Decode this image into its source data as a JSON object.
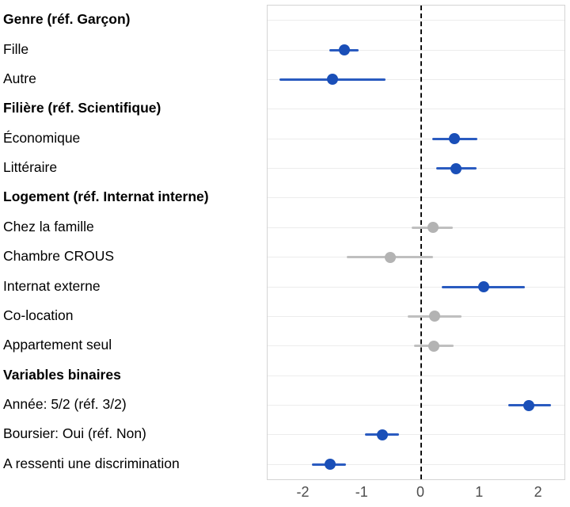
{
  "chart_data": {
    "type": "scatter",
    "subtype": "forest-coefficient-plot",
    "title": "",
    "xlabel": "",
    "ylabel": "",
    "x_ticks": [
      -2,
      -1,
      0,
      1,
      2
    ],
    "x_range": [
      -2.6,
      2.45
    ],
    "zero_reference": 0,
    "grid": "horizontal-only",
    "legend": "none",
    "colors": {
      "significant_point": "#1a4fb8",
      "significant_line": "#2a5bc0",
      "nonsignificant_point": "#b3b3b3",
      "nonsignificant_line": "#bfbfbf",
      "gridline": "#ececec",
      "panel_border": "#d4d4d4",
      "zero_line": "#111111",
      "axis_text": "#4d4d4d",
      "label_text": "#000000"
    },
    "rows": [
      {
        "kind": "header",
        "label": "Genre (réf. Garçon)"
      },
      {
        "kind": "item",
        "label": "Fille",
        "estimate": -1.3,
        "ci_low": -1.55,
        "ci_high": -1.05,
        "significant": true
      },
      {
        "kind": "item",
        "label": "Autre",
        "estimate": -1.5,
        "ci_low": -2.4,
        "ci_high": -0.6,
        "significant": true
      },
      {
        "kind": "header",
        "label": "Filière (réf. Scientifique)"
      },
      {
        "kind": "item",
        "label": "Économique",
        "estimate": 0.58,
        "ci_low": 0.2,
        "ci_high": 0.97,
        "significant": true
      },
      {
        "kind": "item",
        "label": "Littéraire",
        "estimate": 0.61,
        "ci_low": 0.27,
        "ci_high": 0.95,
        "significant": true
      },
      {
        "kind": "header",
        "label": "Logement (réf. Internat interne)"
      },
      {
        "kind": "item",
        "label": "Chez la famille",
        "estimate": 0.21,
        "ci_low": -0.15,
        "ci_high": 0.55,
        "significant": false
      },
      {
        "kind": "item",
        "label": "Chambre CROUS",
        "estimate": -0.51,
        "ci_low": -1.25,
        "ci_high": 0.21,
        "significant": false
      },
      {
        "kind": "item",
        "label": "Internat externe",
        "estimate": 1.07,
        "ci_low": 0.36,
        "ci_high": 1.78,
        "significant": true
      },
      {
        "kind": "item",
        "label": "Co-location",
        "estimate": 0.24,
        "ci_low": -0.21,
        "ci_high": 0.7,
        "significant": false
      },
      {
        "kind": "item",
        "label": "Appartement seul",
        "estimate": 0.23,
        "ci_low": -0.11,
        "ci_high": 0.56,
        "significant": false
      },
      {
        "kind": "header",
        "label": "Variables binaires"
      },
      {
        "kind": "item",
        "label": "Année: 5/2 (réf. 3/2)",
        "estimate": 1.85,
        "ci_low": 1.5,
        "ci_high": 2.22,
        "significant": true
      },
      {
        "kind": "item",
        "label": "Boursier: Oui (réf. Non)",
        "estimate": -0.65,
        "ci_low": -0.94,
        "ci_high": -0.36,
        "significant": true
      },
      {
        "kind": "item",
        "label": "A ressenti une discrimination",
        "estimate": -1.54,
        "ci_low": -1.84,
        "ci_high": -1.26,
        "significant": true
      }
    ]
  }
}
